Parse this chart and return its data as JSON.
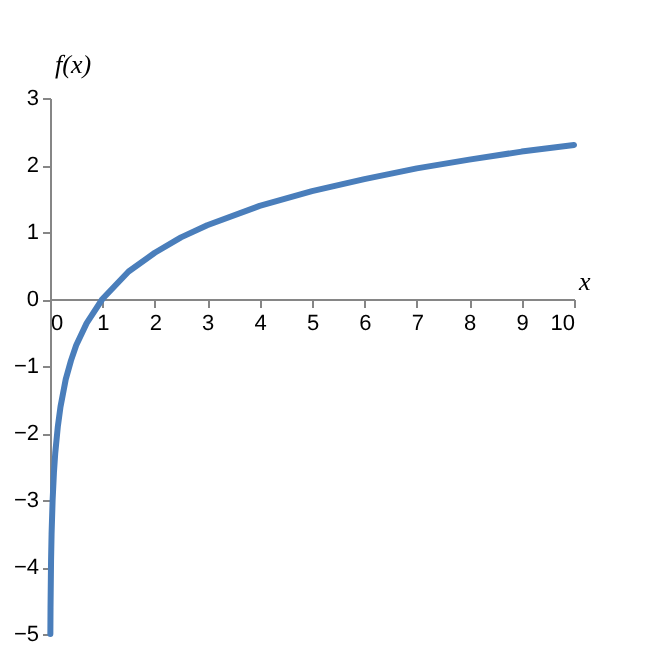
{
  "chart_data": {
    "type": "line",
    "xlabel": "x",
    "ylabel": "f(x)",
    "x": [
      0.0067,
      0.01,
      0.02,
      0.03,
      0.05,
      0.075,
      0.1,
      0.15,
      0.2,
      0.3,
      0.4,
      0.5,
      0.7,
      1,
      1.5,
      2,
      2.5,
      3,
      4,
      5,
      6,
      7,
      8,
      9,
      10
    ],
    "series": [
      {
        "color": "#4a7ebb",
        "values": [
          -5,
          -4.61,
          -3.91,
          -3.51,
          -3.0,
          -2.59,
          -2.3,
          -1.9,
          -1.61,
          -1.2,
          -0.92,
          -0.69,
          -0.36,
          0,
          0.41,
          0.69,
          0.92,
          1.1,
          1.39,
          1.61,
          1.79,
          1.95,
          2.08,
          2.2,
          2.3
        ]
      }
    ],
    "xlim": [
      0,
      10
    ],
    "xticks": [
      0,
      1,
      2,
      3,
      4,
      5,
      6,
      7,
      8,
      9,
      10
    ],
    "ylim": [
      -5,
      3
    ],
    "yticks": [
      -5,
      -4,
      -3,
      -2,
      -1,
      0,
      1,
      2,
      3
    ],
    "grid": false,
    "marker": "none",
    "line_style": "solid"
  }
}
